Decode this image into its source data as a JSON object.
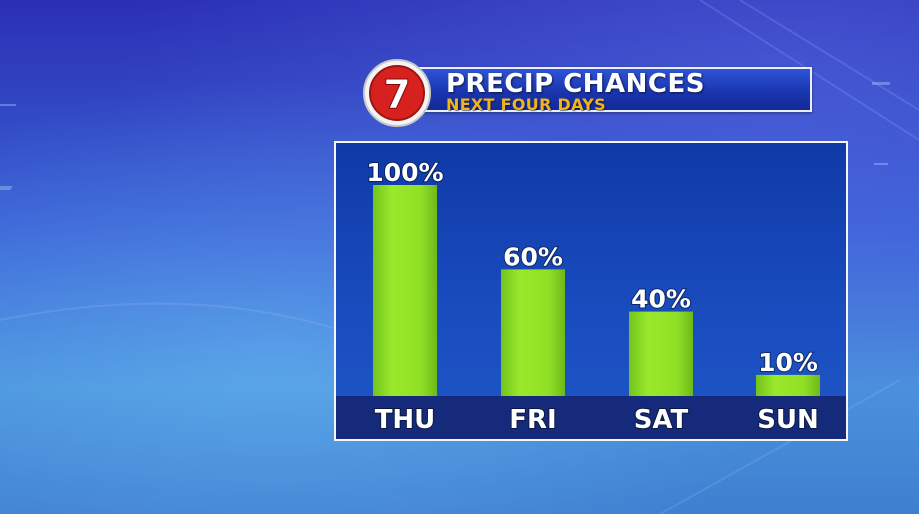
{
  "header": {
    "title": "PRECIP CHANCES",
    "subtitle": "NEXT FOUR DAYS",
    "logo_text": "7"
  },
  "colors": {
    "bar": "#8fe025",
    "bar_dark": "#6fb81a",
    "axis_band": "#152a7a",
    "subtitle": "#f2b418"
  },
  "chart_data": {
    "type": "bar",
    "categories": [
      "THU",
      "FRI",
      "SAT",
      "SUN"
    ],
    "values": [
      100,
      60,
      40,
      10
    ],
    "value_labels": [
      "100%",
      "60%",
      "40%",
      "10%"
    ],
    "ylim": [
      0,
      100
    ],
    "title": "PRECIP CHANCES",
    "subtitle": "NEXT FOUR DAYS",
    "grid": false
  }
}
